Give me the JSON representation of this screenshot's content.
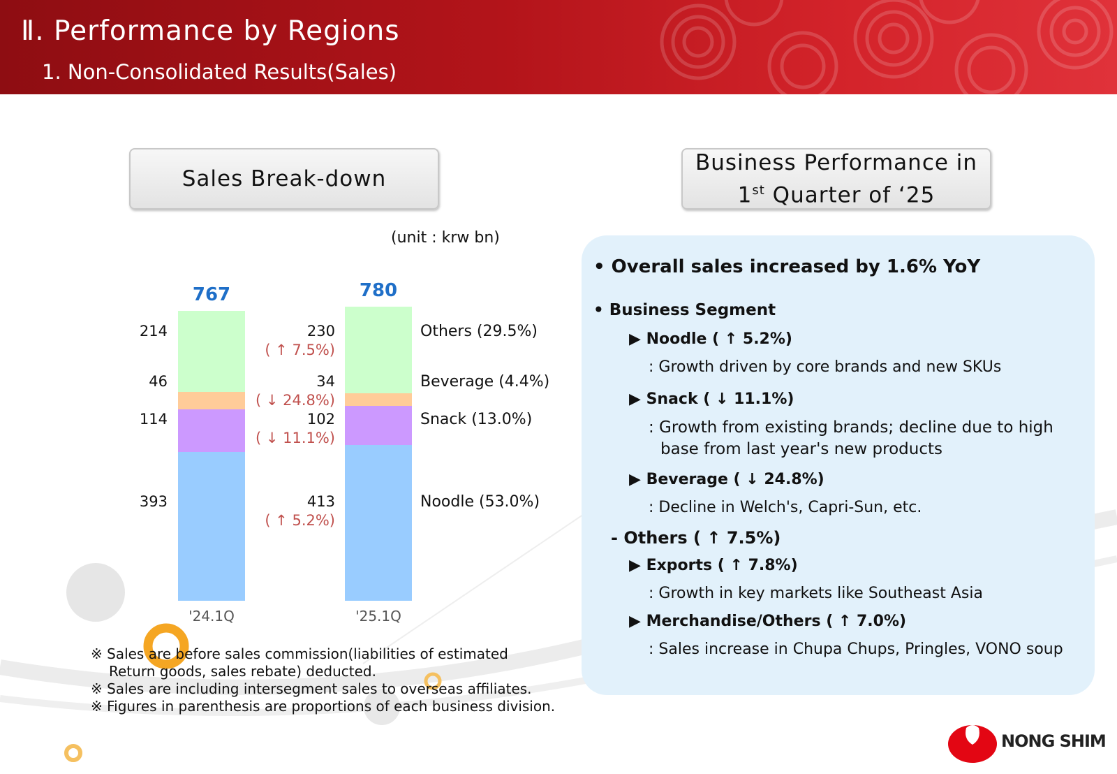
{
  "header": {
    "title": "Ⅱ. Performance by Regions",
    "subtitle": "1. Non-Consolidated Results(Sales)"
  },
  "left_box": {
    "label": "Sales Break-down"
  },
  "right_box": {
    "line1": "Business Performance in",
    "line2_a": "1",
    "line2_sup": "st",
    "line2_b": " Quarter of ‘25"
  },
  "unit": "(unit : krw bn)",
  "chart_data": {
    "type": "bar",
    "stacked": true,
    "categories": [
      "'24.1Q",
      "'25.1Q"
    ],
    "totals": [
      "767",
      "780"
    ],
    "series": [
      {
        "name": "Noodle (53.0%)",
        "values": [
          393,
          413
        ],
        "color": "#99ccff",
        "change": "( ↑ 5.2%)"
      },
      {
        "name": "Snack (13.0%)",
        "values": [
          114,
          102
        ],
        "color": "#cc99ff",
        "change": "( ↓ 11.1%)"
      },
      {
        "name": "Beverage (4.4%)",
        "values": [
          46,
          34
        ],
        "color": "#ffcc99",
        "change": "( ↓ 24.8%)"
      },
      {
        "name": "Others (29.5%)",
        "values": [
          214,
          230
        ],
        "color": "#ccffcc",
        "change": "( ↑ 7.5%)"
      }
    ],
    "title": "",
    "xlabel": "",
    "ylabel": "",
    "ylim": [
      0,
      780
    ],
    "grid": false
  },
  "performance": {
    "overall": "• Overall sales increased by 1.6% YoY",
    "segment_title": "• Business Segment",
    "noodle": {
      "label": "▶ Noodle ( ↑ 5.2%)",
      "desc": ": Growth driven by core brands and new SKUs"
    },
    "snack": {
      "label": "▶ Snack ( ↓ 11.1%)",
      "desc1": ": Growth from existing brands; decline due to high",
      "desc2": "base from last year's new products"
    },
    "beverage": {
      "label": "▶ Beverage ( ↓ 24.8%)",
      "desc": ": Decline in Welch's, Capri-Sun, etc."
    },
    "others": {
      "label": "- Others ( ↑ 7.5%)"
    },
    "exports": {
      "label": "▶ Exports ( ↑ 7.8%)",
      "desc": ": Growth in key markets like Southeast Asia"
    },
    "merch": {
      "label": "▶ Merchandise/Others ( ↑ 7.0%)",
      "desc": ": Sales increase in Chupa Chups, Pringles, VONO soup"
    }
  },
  "notes": [
    "※ Sales are before sales commission(liabilities of estimated",
    "Return goods, sales rebate) deducted.",
    "※ Sales are including intersegment sales to overseas affiliates.",
    "※ Figures in parenthesis are proportions of each business division."
  ],
  "logo": {
    "text": "NONG SHIM",
    "color": "#e30613"
  }
}
